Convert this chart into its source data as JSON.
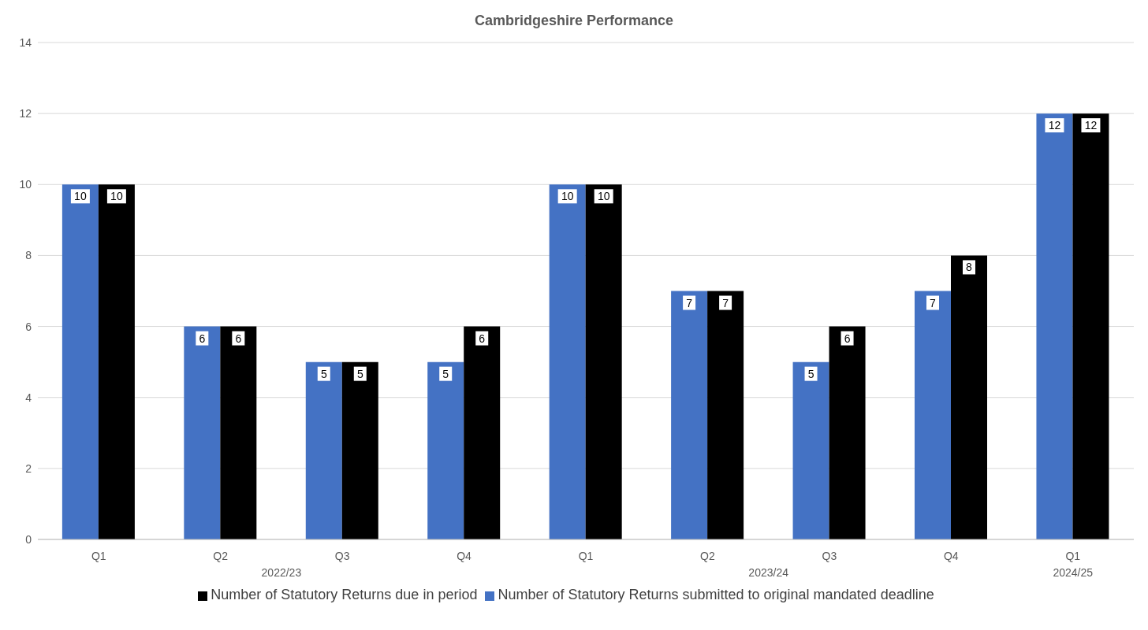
{
  "chart_data": {
    "type": "bar",
    "title": "Cambridgeshire Performance",
    "categories": [
      "Q1",
      "Q2",
      "Q3",
      "Q4",
      "Q1",
      "Q2",
      "Q3",
      "Q4",
      "Q1"
    ],
    "series": [
      {
        "name": "Number of Statutory Returns submitted to original mandated deadline",
        "color": "#4472c4",
        "values": [
          10,
          6,
          5,
          5,
          10,
          7,
          5,
          7,
          12
        ]
      },
      {
        "name": "Number of Statutory Returns due in period",
        "color": "#000000",
        "values": [
          10,
          6,
          5,
          6,
          10,
          7,
          6,
          8,
          12
        ]
      }
    ],
    "annotations": [
      "2022/23",
      "2023/24",
      "2024/25"
    ],
    "ylim": [
      0,
      14
    ],
    "yticks": [
      0,
      2,
      4,
      6,
      8,
      10,
      12,
      14
    ],
    "grid": "y",
    "legend": "bottom",
    "data_labels": true
  }
}
